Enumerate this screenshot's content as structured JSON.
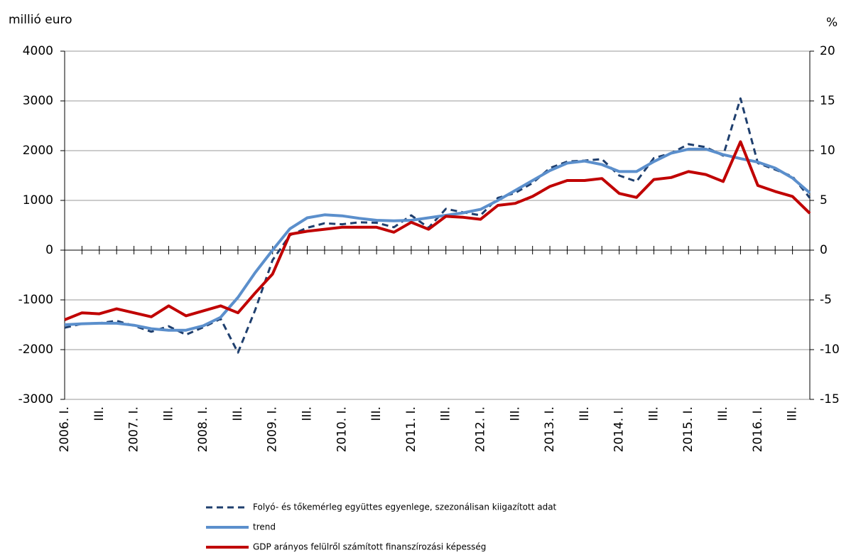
{
  "chart_data": {
    "type": "line",
    "y_label": "millió euro",
    "y2_label": "%",
    "categories": [
      "2006. I.",
      null,
      "III.",
      null,
      "2007. I.",
      null,
      "III.",
      null,
      "2008. I.",
      null,
      "III.",
      null,
      "2009. I.",
      null,
      "III.",
      null,
      "2010. I.",
      null,
      "III.",
      null,
      "2011. I.",
      null,
      "III.",
      null,
      "2012. I.",
      null,
      "III.",
      null,
      "2013. I.",
      null,
      "III.",
      null,
      "2014. I.",
      null,
      "III.",
      null,
      "2015. I.",
      null,
      "III.",
      null,
      "2016. I.",
      null,
      "III.",
      null
    ],
    "ylim": [
      -3000,
      4000
    ],
    "yticks": [
      -3000,
      -2000,
      -1000,
      0,
      1000,
      2000,
      3000,
      4000
    ],
    "y2lim": [
      -15,
      20
    ],
    "y2ticks": [
      -15,
      -10,
      -5,
      0,
      5,
      10,
      15,
      20
    ],
    "grid": true,
    "series": [
      {
        "name": "Folyó- és tőkemérleg együttes egyenlege, szezonálisan kiigazított adat",
        "color": "#1f3f6e",
        "dashed": true,
        "values": [
          -1560,
          -1480,
          -1470,
          -1420,
          -1520,
          -1640,
          -1530,
          -1700,
          -1550,
          -1380,
          -2060,
          -1200,
          -200,
          300,
          450,
          540,
          520,
          560,
          550,
          460,
          700,
          450,
          830,
          760,
          700,
          1050,
          1150,
          1350,
          1650,
          1780,
          1800,
          1830,
          1500,
          1380,
          1850,
          1950,
          2130,
          2070,
          1900,
          3050,
          1750,
          1620,
          1480,
          1050
        ]
      },
      {
        "name": "trend",
        "color": "#5b8fcc",
        "values": [
          -1500,
          -1480,
          -1470,
          -1470,
          -1510,
          -1580,
          -1610,
          -1610,
          -1520,
          -1350,
          -950,
          -450,
          0,
          430,
          650,
          710,
          690,
          640,
          600,
          590,
          600,
          650,
          700,
          750,
          820,
          1000,
          1200,
          1400,
          1600,
          1750,
          1790,
          1720,
          1580,
          1580,
          1780,
          1950,
          2030,
          2030,
          1920,
          1840,
          1770,
          1650,
          1450,
          1150
        ]
      },
      {
        "name": "GDP arányos felülről számított finanszírozási képesség",
        "color": "#c00000",
        "axis": "y2",
        "values": [
          -7.0,
          -6.3,
          -6.4,
          -5.9,
          -6.3,
          -6.7,
          -5.6,
          -6.6,
          -6.1,
          -5.6,
          -6.3,
          -4.3,
          -2.4,
          1.6,
          1.9,
          2.1,
          2.3,
          2.3,
          2.3,
          1.8,
          2.8,
          2.1,
          3.4,
          3.3,
          3.1,
          4.5,
          4.7,
          5.4,
          6.4,
          7.0,
          7.0,
          7.2,
          5.7,
          5.3,
          7.1,
          7.3,
          7.9,
          7.6,
          6.9,
          10.9,
          6.5,
          5.9,
          5.4,
          3.7
        ]
      }
    ]
  }
}
